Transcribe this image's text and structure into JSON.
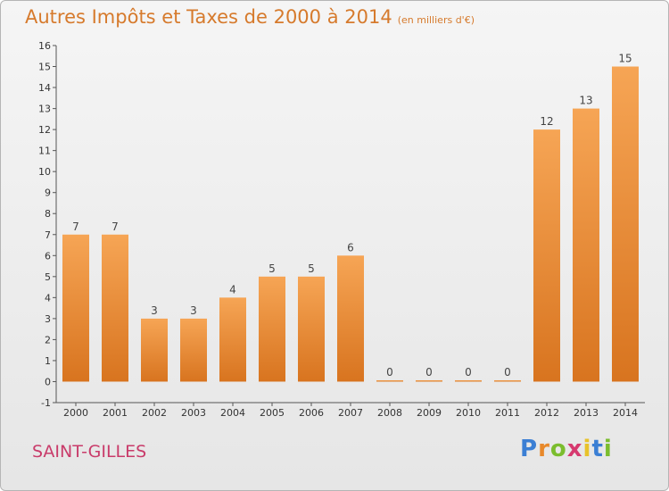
{
  "title": "Autres Impôts et Taxes de 2000 à 2014",
  "subtitle": "(en milliers d'€)",
  "commune": "SAINT-GILLES",
  "logo": {
    "letters": [
      "P",
      "r",
      "o",
      "x",
      "i",
      "t",
      "i"
    ],
    "colors": [
      "#3b7fd4",
      "#e8892b",
      "#7bbd2e",
      "#d6396f",
      "#e8c22b",
      "#3b7fd4",
      "#7bbd2e"
    ]
  },
  "chart_data": {
    "type": "bar",
    "categories": [
      "2000",
      "2001",
      "2002",
      "2003",
      "2004",
      "2005",
      "2006",
      "2007",
      "2008",
      "2009",
      "2010",
      "2011",
      "2012",
      "2013",
      "2014"
    ],
    "values": [
      7,
      7,
      3,
      3,
      4,
      5,
      5,
      6,
      0,
      0,
      0,
      0,
      12,
      13,
      15
    ],
    "ylim": [
      -1,
      16
    ],
    "yticks": [
      -1,
      0,
      1,
      2,
      3,
      4,
      5,
      6,
      7,
      8,
      9,
      10,
      11,
      12,
      13,
      14,
      15,
      16
    ],
    "bar_color": "#e8892b",
    "grid": false
  }
}
